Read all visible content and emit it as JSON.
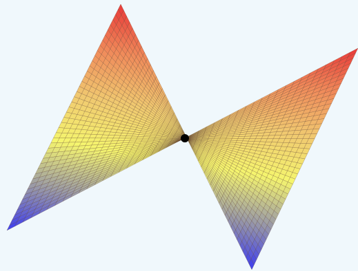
{
  "figure": {
    "surface": "saddle",
    "colormap": [
      "#3b3bf0",
      "#9a9aa6",
      "#f5f56e",
      "#f0c870",
      "#f08a5a",
      "#e83838"
    ],
    "mesh_color": "#5a3a2a",
    "background": "#f0f8fc",
    "point_color": "#000000"
  }
}
